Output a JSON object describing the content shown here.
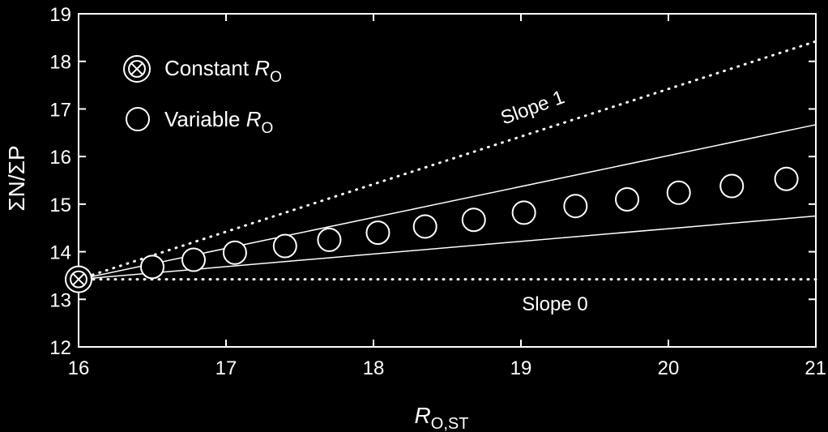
{
  "colors": {
    "background": "#000000",
    "foreground": "#ffffff"
  },
  "chart_data": {
    "type": "scatter",
    "title": "",
    "xlabel_main": "R",
    "xlabel_sub": "O,ST",
    "ylabel": "ΣN/ΣP",
    "xlim": [
      16,
      21
    ],
    "ylim": [
      12,
      19
    ],
    "x_ticks": [
      "16",
      "17",
      "18",
      "19",
      "20",
      "21"
    ],
    "y_ticks": [
      "12",
      "13",
      "14",
      "15",
      "16",
      "17",
      "18",
      "19"
    ],
    "grid": false,
    "legend": {
      "position": "top-left",
      "entries": [
        {
          "marker": "circle-x",
          "text": "Constant ",
          "italic": "R",
          "sub": "O"
        },
        {
          "marker": "circle",
          "text": "Variable ",
          "italic": "R",
          "sub": "O"
        }
      ]
    },
    "annotations": [
      {
        "text": "Slope 1"
      },
      {
        "text": "Slope 0"
      }
    ],
    "series": [
      {
        "name": "Constant R_O",
        "marker": "circle-x",
        "points": [
          [
            16.0,
            13.42
          ]
        ]
      },
      {
        "name": "Variable R_O",
        "marker": "circle",
        "points": [
          [
            16.5,
            13.68
          ],
          [
            16.78,
            13.83
          ],
          [
            17.06,
            13.98
          ],
          [
            17.4,
            14.12
          ],
          [
            17.7,
            14.25
          ],
          [
            18.03,
            14.4
          ],
          [
            18.35,
            14.53
          ],
          [
            18.68,
            14.67
          ],
          [
            19.02,
            14.82
          ],
          [
            19.37,
            14.96
          ],
          [
            19.72,
            15.1
          ],
          [
            20.07,
            15.24
          ],
          [
            20.43,
            15.38
          ],
          [
            20.8,
            15.53
          ]
        ]
      }
    ],
    "reference_lines": [
      {
        "style": "dotted",
        "from": [
          16.0,
          13.42
        ],
        "to": [
          21.0,
          18.42
        ]
      },
      {
        "style": "dotted",
        "from": [
          16.0,
          13.42
        ],
        "to": [
          21.0,
          13.42
        ]
      },
      {
        "style": "solid",
        "from": [
          16.0,
          13.42
        ],
        "to": [
          21.0,
          16.67
        ]
      },
      {
        "style": "solid",
        "from": [
          16.0,
          13.42
        ],
        "to": [
          21.0,
          14.75
        ]
      }
    ]
  }
}
